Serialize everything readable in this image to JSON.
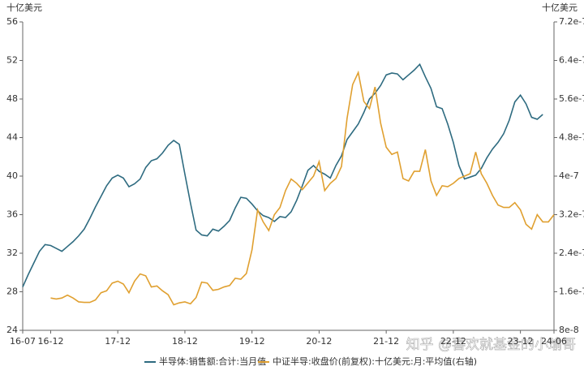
{
  "chart_data": {
    "type": "line",
    "y_unit": "十亿美元",
    "y2_unit": "十亿美元",
    "watermark": "知乎 @喜欢就基金的小瑜哥",
    "categories": [
      "16-07",
      null,
      null,
      null,
      null,
      "16-12",
      null,
      null,
      null,
      null,
      null,
      null,
      null,
      null,
      null,
      null,
      null,
      "17-12",
      null,
      null,
      null,
      null,
      null,
      null,
      null,
      null,
      null,
      null,
      null,
      "18-12",
      null,
      null,
      null,
      null,
      null,
      null,
      null,
      null,
      null,
      null,
      null,
      "19-12",
      null,
      null,
      null,
      null,
      null,
      null,
      null,
      null,
      null,
      null,
      null,
      "20-12",
      null,
      null,
      null,
      null,
      null,
      null,
      null,
      null,
      null,
      null,
      null,
      "21-12",
      null,
      null,
      null,
      null,
      null,
      null,
      null,
      null,
      null,
      null,
      null,
      "22-12",
      null,
      null,
      null,
      null,
      null,
      null,
      null,
      null,
      null,
      null,
      null,
      "23-12",
      null,
      null,
      null,
      null,
      null,
      "24-06"
    ],
    "ylim": [
      24,
      56
    ],
    "yticks": [
      24,
      28,
      32,
      36,
      40,
      44,
      48,
      52,
      56
    ],
    "y2lim": [
      8e-08,
      7.2e-07
    ],
    "y2ticks": [
      {
        "value": 8e-08,
        "label": "8e-8"
      },
      {
        "value": 1.6e-07,
        "label": "1.6e-7"
      },
      {
        "value": 2.4e-07,
        "label": "2.4e-7"
      },
      {
        "value": 3.2e-07,
        "label": "3.2e-7"
      },
      {
        "value": 4e-07,
        "label": "4e-7"
      },
      {
        "value": 4.8e-07,
        "label": "4.8e-7"
      },
      {
        "value": 5.6e-07,
        "label": "5.6e-7"
      },
      {
        "value": 6.4e-07,
        "label": "6.4e-7"
      },
      {
        "value": 7.2e-07,
        "label": "7.2e-7"
      }
    ],
    "grid": false,
    "series": [
      {
        "name": "半导体:销售额:合计:当月值",
        "color": "#2e6b80",
        "values": [
          28.5,
          29.8,
          31.0,
          32.2,
          32.9,
          32.8,
          32.5,
          32.2,
          32.7,
          33.2,
          33.8,
          34.5,
          35.6,
          36.8,
          37.9,
          39.0,
          39.8,
          40.1,
          39.8,
          38.9,
          39.2,
          39.7,
          40.9,
          41.6,
          41.8,
          42.4,
          43.2,
          43.7,
          43.3,
          40.2,
          37.2,
          34.4,
          33.9,
          33.8,
          34.5,
          34.3,
          34.8,
          35.4,
          36.7,
          37.8,
          37.7,
          37.1,
          36.4,
          35.9,
          35.7,
          35.3,
          35.8,
          35.7,
          36.3,
          37.5,
          39.0,
          40.6,
          41.1,
          40.5,
          40.2,
          39.8,
          41.1,
          42.1,
          43.8,
          44.6,
          45.4,
          46.6,
          48.0,
          48.6,
          49.4,
          50.5,
          50.7,
          50.6,
          50.0,
          50.5,
          51.0,
          51.6,
          50.3,
          49.1,
          47.2,
          47.0,
          45.4,
          43.5,
          41.1,
          39.7,
          39.9,
          40.1,
          40.8,
          41.9,
          42.8,
          43.5,
          44.4,
          45.8,
          47.7,
          48.4,
          47.5,
          46.1,
          45.9,
          46.4,
          null,
          null
        ]
      },
      {
        "name": "中证半导:收盘价(前复权):十亿美元:月:平均值(右轴)",
        "color": "#e0a030",
        "axis": "y2",
        "values": [
          null,
          null,
          null,
          null,
          null,
          1.47e-07,
          1.45e-07,
          1.47e-07,
          1.53e-07,
          1.47e-07,
          1.39e-07,
          1.38e-07,
          1.38e-07,
          1.43e-07,
          1.58e-07,
          1.62e-07,
          1.78e-07,
          1.82e-07,
          1.76e-07,
          1.58e-07,
          1.82e-07,
          1.97e-07,
          1.93e-07,
          1.7e-07,
          1.72e-07,
          1.62e-07,
          1.54e-07,
          1.33e-07,
          1.37e-07,
          1.39e-07,
          1.35e-07,
          1.48e-07,
          1.8e-07,
          1.78e-07,
          1.63e-07,
          1.65e-07,
          1.7e-07,
          1.73e-07,
          1.88e-07,
          1.86e-07,
          1.98e-07,
          2.47e-07,
          3.3e-07,
          3.05e-07,
          2.87e-07,
          3.2e-07,
          3.35e-07,
          3.7e-07,
          3.94e-07,
          3.85e-07,
          3.72e-07,
          3.86e-07,
          4e-07,
          4.3e-07,
          3.7e-07,
          3.85e-07,
          3.95e-07,
          4.2e-07,
          5.2e-07,
          5.9e-07,
          6.15e-07,
          5.55e-07,
          5.4e-07,
          5.85e-07,
          5.1e-07,
          4.6e-07,
          4.45e-07,
          4.5e-07,
          3.95e-07,
          3.9e-07,
          4.1e-07,
          4.1e-07,
          4.55e-07,
          3.9e-07,
          3.6e-07,
          3.8e-07,
          3.78e-07,
          3.85e-07,
          3.95e-07,
          4e-07,
          4.05e-07,
          4.5e-07,
          4.05e-07,
          3.85e-07,
          3.6e-07,
          3.4e-07,
          3.35e-07,
          3.35e-07,
          3.45e-07,
          3.3e-07,
          3e-07,
          2.9e-07,
          3.2e-07,
          3.05e-07,
          3.05e-07,
          3.2e-07
        ]
      }
    ]
  }
}
